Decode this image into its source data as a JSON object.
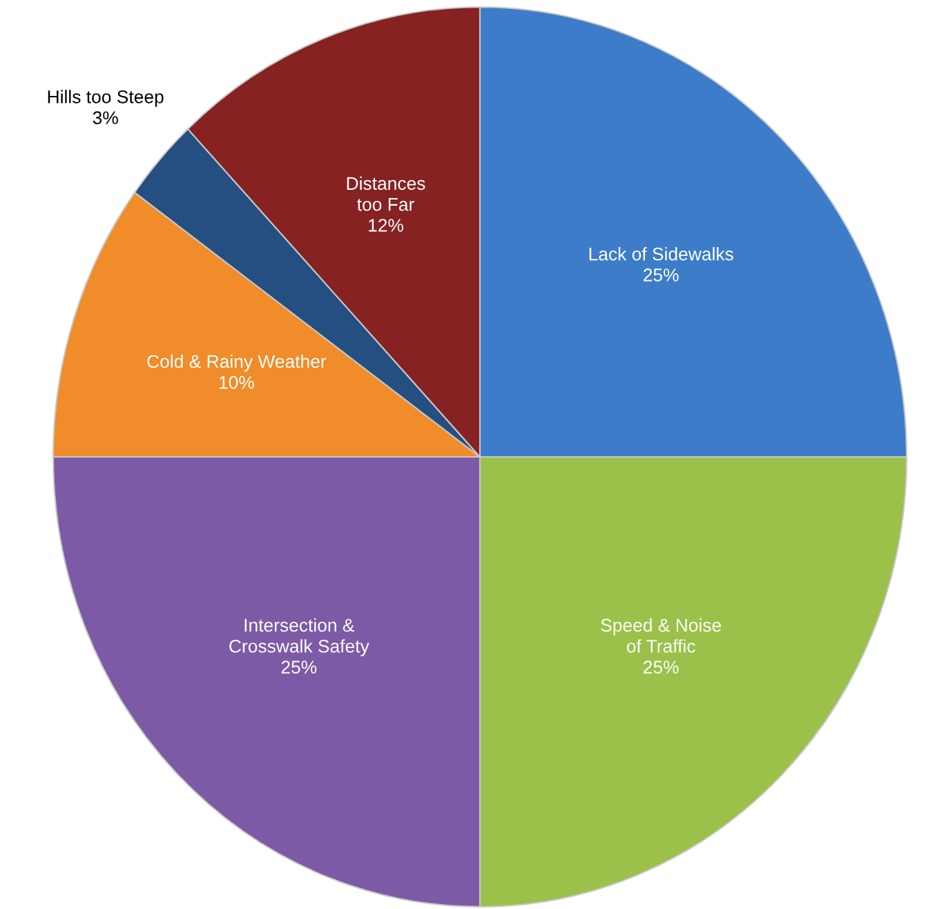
{
  "chart_data": {
    "type": "pie",
    "categories": [
      "Lack of Sidewalks",
      "Speed & Noise\nof Traffic",
      "Intersection &\nCrosswalk Safety",
      "Cold & Rainy Weather",
      "Hills too Steep",
      "Distances\ntoo Far"
    ],
    "values": [
      25,
      25,
      25,
      10,
      3,
      12
    ],
    "value_labels": [
      "25%",
      "25%",
      "25%",
      "10%",
      "3%",
      "12%"
    ],
    "colors": [
      "#3d7cc9",
      "#9bc14a",
      "#7d5aa6",
      "#f08c2a",
      "#244f80",
      "#862222"
    ],
    "legend": false
  }
}
